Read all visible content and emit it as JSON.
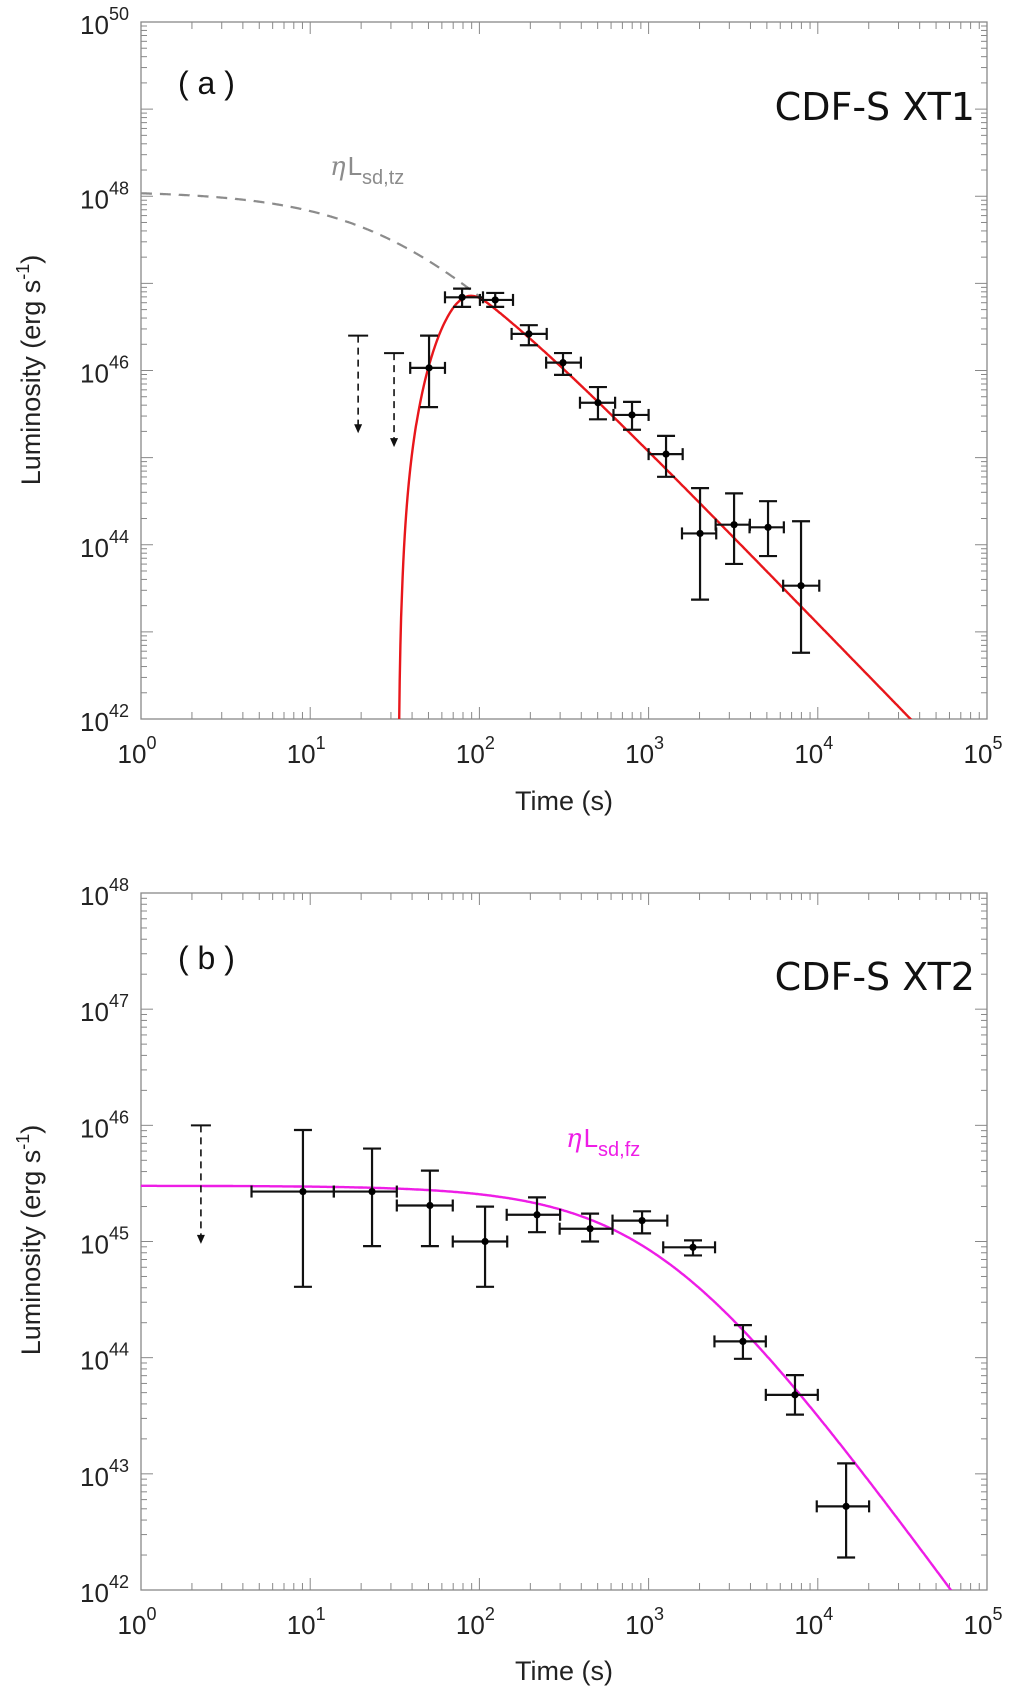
{
  "chart_data": [
    {
      "type": "scatter",
      "panel_tag": "( a )",
      "title": "CDF-S XT1",
      "xlabel": "Time (s)",
      "ylabel": "Luminosity (erg s",
      "ylabel_sup": "-1",
      "ylabel_close": ")",
      "xscale": "log",
      "yscale": "log",
      "xlim": [
        1,
        100000
      ],
      "ylim": [
        1e+42,
        1e+50
      ],
      "x_ticks": [
        {
          "base": "10",
          "exp": "0"
        },
        {
          "base": "10",
          "exp": "1"
        },
        {
          "base": "10",
          "exp": "2"
        },
        {
          "base": "10",
          "exp": "3"
        },
        {
          "base": "10",
          "exp": "4"
        },
        {
          "base": "10",
          "exp": "5"
        }
      ],
      "y_ticks": [
        {
          "base": "10",
          "exp": "42"
        },
        {
          "base": "10",
          "exp": "44"
        },
        {
          "base": "10",
          "exp": "46"
        },
        {
          "base": "10",
          "exp": "48"
        },
        {
          "base": "10",
          "exp": "50"
        }
      ],
      "grid": false,
      "model_label": {
        "prefix": "η",
        "main": "L",
        "sub": "sd,tz",
        "color": "#8c8c8c"
      },
      "series": [
        {
          "name": "data",
          "color": "#000000",
          "points": [
            {
              "x": 50.4,
              "xlo": 39,
              "xhi": 62.6,
              "logy": 46.03,
              "logylo": 45.58,
              "logyhi": 46.4
            },
            {
              "x": 79,
              "xlo": 62.6,
              "xhi": 105,
              "logy": 46.84,
              "logylo": 46.73,
              "logyhi": 46.94
            },
            {
              "x": 124,
              "xlo": 100.7,
              "xhi": 158,
              "logy": 46.81,
              "logylo": 46.73,
              "logyhi": 46.89
            },
            {
              "x": 196,
              "xlo": 155,
              "xhi": 250,
              "logy": 46.42,
              "logylo": 46.29,
              "logyhi": 46.52
            },
            {
              "x": 312,
              "xlo": 248,
              "xhi": 398,
              "logy": 46.09,
              "logylo": 45.95,
              "logyhi": 46.2
            },
            {
              "x": 502,
              "xlo": 393,
              "xhi": 634,
              "logy": 45.63,
              "logylo": 45.44,
              "logyhi": 45.81
            },
            {
              "x": 798,
              "xlo": 620,
              "xhi": 1000,
              "logy": 45.49,
              "logylo": 45.32,
              "logyhi": 45.64
            },
            {
              "x": 1268,
              "xlo": 1000,
              "xhi": 1590,
              "logy": 45.04,
              "logylo": 44.78,
              "logyhi": 45.25
            },
            {
              "x": 2014,
              "xlo": 1575,
              "xhi": 2510,
              "logy": 44.13,
              "logylo": 43.37,
              "logyhi": 44.65
            },
            {
              "x": 3200,
              "xlo": 2490,
              "xhi": 3970,
              "logy": 44.23,
              "logylo": 43.78,
              "logyhi": 44.59
            },
            {
              "x": 5080,
              "xlo": 3950,
              "xhi": 6300,
              "logy": 44.2,
              "logylo": 43.87,
              "logyhi": 44.5
            },
            {
              "x": 7960,
              "xlo": 6240,
              "xhi": 10200,
              "logy": 43.53,
              "logylo": 42.76,
              "logyhi": 44.27
            }
          ],
          "upper_limits": [
            {
              "x": 19.2,
              "logy": 46.4,
              "logy_arrow": 45.28
            },
            {
              "x": 31.3,
              "logy": 46.2,
              "logy_arrow": 45.12
            }
          ]
        },
        {
          "name": "fit",
          "color": "#e8161b",
          "style": "solid",
          "model": "rising",
          "params": {
            "logL0": 48.06,
            "tc": 33,
            "t0": 33,
            "tau": 44.5,
            "p": 2.89
          }
        },
        {
          "name": "ηL_sd,tz",
          "color": "#8c8c8c",
          "style": "dashed",
          "model": "spindown",
          "params": {
            "logL0": 48.06,
            "tc": 33
          },
          "x_range": [
            1,
            100
          ]
        }
      ]
    },
    {
      "type": "scatter",
      "panel_tag": "( b )",
      "title": "CDF-S XT2",
      "xlabel": "Time (s)",
      "ylabel": "Luminosity (erg s",
      "ylabel_sup": "-1",
      "ylabel_close": ")",
      "xscale": "log",
      "yscale": "log",
      "xlim": [
        1,
        100000
      ],
      "ylim": [
        1e+42,
        1e+48
      ],
      "x_ticks": [
        {
          "base": "10",
          "exp": "0"
        },
        {
          "base": "10",
          "exp": "1"
        },
        {
          "base": "10",
          "exp": "2"
        },
        {
          "base": "10",
          "exp": "3"
        },
        {
          "base": "10",
          "exp": "4"
        },
        {
          "base": "10",
          "exp": "5"
        }
      ],
      "y_ticks": [
        {
          "base": "10",
          "exp": "42"
        },
        {
          "base": "10",
          "exp": "43"
        },
        {
          "base": "10",
          "exp": "44"
        },
        {
          "base": "10",
          "exp": "45"
        },
        {
          "base": "10",
          "exp": "46"
        },
        {
          "base": "10",
          "exp": "47"
        },
        {
          "base": "10",
          "exp": "48"
        }
      ],
      "grid": false,
      "model_label": {
        "prefix": "η",
        "main": "L",
        "sub": "sd,fz",
        "color": "#ee1de6"
      },
      "series": [
        {
          "name": "data",
          "color": "#000000",
          "points": [
            {
              "x": 9.06,
              "xlo": 4.5,
              "xhi": 13.8,
              "logy": 45.43,
              "logylo": 44.61,
              "logyhi": 45.96
            },
            {
              "x": 23.2,
              "xlo": 13.8,
              "xhi": 32.5,
              "logy": 45.43,
              "logylo": 44.96,
              "logyhi": 45.8
            },
            {
              "x": 51,
              "xlo": 32.5,
              "xhi": 69.6,
              "logy": 45.31,
              "logylo": 44.96,
              "logyhi": 45.61
            },
            {
              "x": 108,
              "xlo": 69.6,
              "xhi": 146,
              "logy": 45.0,
              "logylo": 44.61,
              "logyhi": 45.3
            },
            {
              "x": 219,
              "xlo": 145,
              "xhi": 300,
              "logy": 45.23,
              "logylo": 45.08,
              "logyhi": 45.38
            },
            {
              "x": 451,
              "xlo": 298,
              "xhi": 612,
              "logy": 45.11,
              "logylo": 45.0,
              "logyhi": 45.24
            },
            {
              "x": 915,
              "xlo": 612,
              "xhi": 1290,
              "logy": 45.18,
              "logylo": 45.07,
              "logyhi": 45.26
            },
            {
              "x": 1830,
              "xlo": 1220,
              "xhi": 2470,
              "logy": 44.95,
              "logylo": 44.88,
              "logyhi": 45.01
            },
            {
              "x": 3610,
              "xlo": 2450,
              "xhi": 4930,
              "logy": 44.14,
              "logylo": 43.99,
              "logyhi": 44.28
            },
            {
              "x": 7330,
              "xlo": 4930,
              "xhi": 10000,
              "logy": 43.68,
              "logylo": 43.51,
              "logyhi": 43.85
            },
            {
              "x": 14700,
              "xlo": 9860,
              "xhi": 20100,
              "logy": 42.72,
              "logylo": 42.28,
              "logyhi": 43.09
            }
          ],
          "upper_limits": [
            {
              "x": 2.26,
              "logy": 46.0,
              "logy_arrow": 44.98
            }
          ]
        },
        {
          "name": "ηL_sd,fz",
          "color": "#ee1de6",
          "style": "solid",
          "model": "spindown",
          "params": {
            "logL0": 45.48,
            "tc": 1134
          }
        }
      ]
    }
  ]
}
